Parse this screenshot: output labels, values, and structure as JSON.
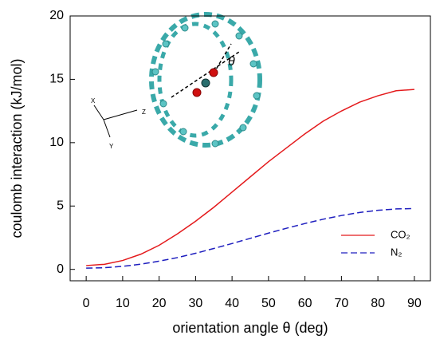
{
  "chart_data": {
    "type": "line",
    "x_label": "orientation angle θ (deg)",
    "y_label": "coulomb interaction (kJ/mol)",
    "x": [
      0,
      5,
      10,
      15,
      20,
      25,
      30,
      35,
      40,
      45,
      50,
      55,
      60,
      65,
      70,
      75,
      80,
      85,
      90
    ],
    "series": [
      {
        "name": "CO₂",
        "color": "#e41a1c",
        "line_style": "solid",
        "values": [
          0.3,
          0.4,
          0.7,
          1.2,
          1.9,
          2.8,
          3.8,
          4.9,
          6.1,
          7.3,
          8.5,
          9.6,
          10.7,
          11.7,
          12.5,
          13.2,
          13.7,
          14.1,
          14.2
        ]
      },
      {
        "name": "N₂",
        "color": "#1f1fbf",
        "line_style": "dashed",
        "values": [
          0.1,
          0.13,
          0.24,
          0.41,
          0.65,
          0.93,
          1.27,
          1.65,
          2.04,
          2.45,
          2.86,
          3.25,
          3.62,
          3.96,
          4.25,
          4.49,
          4.66,
          4.77,
          4.8
        ]
      }
    ],
    "xlim": [
      -4.4,
      94.4
    ],
    "ylim": [
      -0.9,
      20
    ],
    "xticks": [
      0,
      10,
      20,
      30,
      40,
      50,
      60,
      70,
      80,
      90
    ],
    "yticks": [
      0,
      5,
      10,
      15,
      20
    ],
    "legend": "lower-right",
    "inset_labels": {
      "x_axis": "X",
      "y_axis": "Y",
      "z_axis": "Z",
      "angle": "θ"
    }
  }
}
